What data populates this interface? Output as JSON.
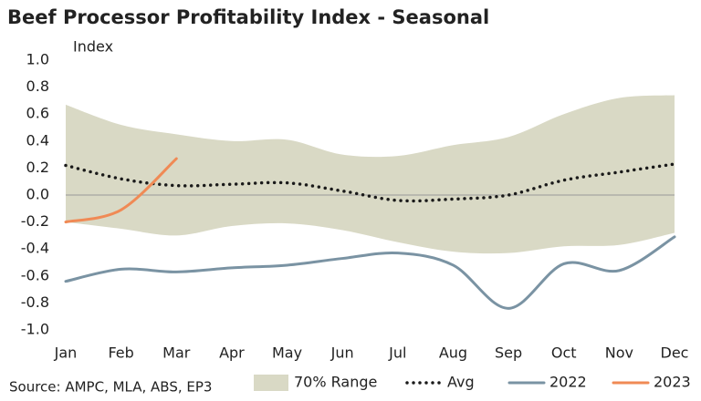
{
  "chart_data": {
    "type": "line",
    "title": "Beef Processor Profitability Index - Seasonal",
    "y_label": "Index",
    "source": "Source: AMPC, MLA, ABS, EP3",
    "categories": [
      "Jan",
      "Feb",
      "Mar",
      "Apr",
      "May",
      "Jun",
      "Jul",
      "Aug",
      "Sep",
      "Oct",
      "Nov",
      "Dec"
    ],
    "ylim": [
      -1.0,
      1.0
    ],
    "yticks": [
      {
        "value": 1.0,
        "label": "1.0"
      },
      0.8,
      0.6,
      0.4,
      0.2,
      {
        "value": 0,
        "label": "0.0"
      },
      -0.2,
      -0.4,
      -0.6,
      -0.8,
      {
        "value": -1.0,
        "label": "-1.0"
      }
    ],
    "band": {
      "name": "70% Range",
      "color": "#d9d9c5",
      "high": [
        0.67,
        0.52,
        0.45,
        0.4,
        0.41,
        0.3,
        0.29,
        0.37,
        0.43,
        0.6,
        0.72,
        0.74
      ],
      "low": [
        -0.2,
        -0.25,
        -0.3,
        -0.23,
        -0.21,
        -0.26,
        -0.35,
        -0.42,
        -0.43,
        -0.38,
        -0.37,
        -0.28
      ]
    },
    "series": [
      {
        "name": "Avg",
        "color": "#1a1a1a",
        "dotted": true,
        "values": [
          0.22,
          0.12,
          0.07,
          0.08,
          0.09,
          0.03,
          -0.04,
          -0.03,
          0.0,
          0.11,
          0.17,
          0.23
        ]
      },
      {
        "name": "2022",
        "color": "#7a93a3",
        "values": [
          -0.64,
          -0.55,
          -0.57,
          -0.54,
          -0.52,
          -0.47,
          -0.43,
          -0.52,
          -0.84,
          -0.51,
          -0.56,
          -0.31
        ]
      },
      {
        "name": "2023",
        "color": "#f08a55",
        "values": [
          -0.2,
          -0.11,
          0.27,
          null,
          null,
          null,
          null,
          null,
          null,
          null,
          null,
          null
        ]
      }
    ]
  }
}
